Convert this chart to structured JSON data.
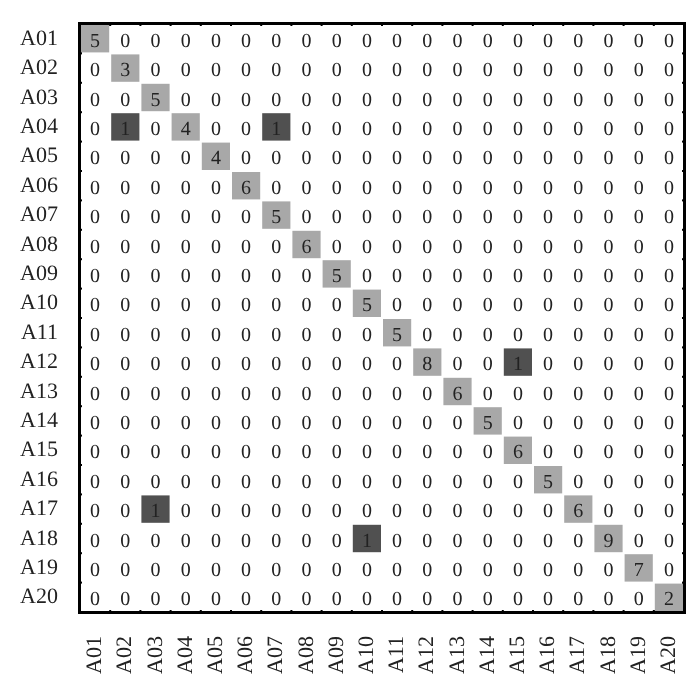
{
  "chart_data": {
    "type": "heatmap",
    "categories": [
      "A01",
      "A02",
      "A03",
      "A04",
      "A05",
      "A06",
      "A07",
      "A08",
      "A09",
      "A10",
      "A11",
      "A12",
      "A13",
      "A14",
      "A15",
      "A16",
      "A17",
      "A18",
      "A19",
      "A20"
    ],
    "y_categories": [
      "A01",
      "A02",
      "A03",
      "A04",
      "A05",
      "A06",
      "A07",
      "A08",
      "A09",
      "A10",
      "A11",
      "A12",
      "A13",
      "A14",
      "A15",
      "A16",
      "A17",
      "A18",
      "A19",
      "A20"
    ],
    "cells": [
      [
        5,
        0,
        0,
        0,
        0,
        0,
        0,
        0,
        0,
        0,
        0,
        0,
        0,
        0,
        0,
        0,
        0,
        0,
        0,
        0
      ],
      [
        0,
        3,
        0,
        0,
        0,
        0,
        0,
        0,
        0,
        0,
        0,
        0,
        0,
        0,
        0,
        0,
        0,
        0,
        0,
        0
      ],
      [
        0,
        0,
        5,
        0,
        0,
        0,
        0,
        0,
        0,
        0,
        0,
        0,
        0,
        0,
        0,
        0,
        0,
        0,
        0,
        0
      ],
      [
        0,
        1,
        0,
        4,
        0,
        0,
        1,
        0,
        0,
        0,
        0,
        0,
        0,
        0,
        0,
        0,
        0,
        0,
        0,
        0
      ],
      [
        0,
        0,
        0,
        0,
        4,
        0,
        0,
        0,
        0,
        0,
        0,
        0,
        0,
        0,
        0,
        0,
        0,
        0,
        0,
        0
      ],
      [
        0,
        0,
        0,
        0,
        0,
        6,
        0,
        0,
        0,
        0,
        0,
        0,
        0,
        0,
        0,
        0,
        0,
        0,
        0,
        0
      ],
      [
        0,
        0,
        0,
        0,
        0,
        0,
        5,
        0,
        0,
        0,
        0,
        0,
        0,
        0,
        0,
        0,
        0,
        0,
        0,
        0
      ],
      [
        0,
        0,
        0,
        0,
        0,
        0,
        0,
        6,
        0,
        0,
        0,
        0,
        0,
        0,
        0,
        0,
        0,
        0,
        0,
        0
      ],
      [
        0,
        0,
        0,
        0,
        0,
        0,
        0,
        0,
        5,
        0,
        0,
        0,
        0,
        0,
        0,
        0,
        0,
        0,
        0,
        0
      ],
      [
        0,
        0,
        0,
        0,
        0,
        0,
        0,
        0,
        0,
        5,
        0,
        0,
        0,
        0,
        0,
        0,
        0,
        0,
        0,
        0
      ],
      [
        0,
        0,
        0,
        0,
        0,
        0,
        0,
        0,
        0,
        0,
        5,
        0,
        0,
        0,
        0,
        0,
        0,
        0,
        0,
        0
      ],
      [
        0,
        0,
        0,
        0,
        0,
        0,
        0,
        0,
        0,
        0,
        0,
        8,
        0,
        0,
        1,
        0,
        0,
        0,
        0,
        0
      ],
      [
        0,
        0,
        0,
        0,
        0,
        0,
        0,
        0,
        0,
        0,
        0,
        0,
        6,
        0,
        0,
        0,
        0,
        0,
        0,
        0
      ],
      [
        0,
        0,
        0,
        0,
        0,
        0,
        0,
        0,
        0,
        0,
        0,
        0,
        0,
        5,
        0,
        0,
        0,
        0,
        0,
        0
      ],
      [
        0,
        0,
        0,
        0,
        0,
        0,
        0,
        0,
        0,
        0,
        0,
        0,
        0,
        0,
        6,
        0,
        0,
        0,
        0,
        0
      ],
      [
        0,
        0,
        0,
        0,
        0,
        0,
        0,
        0,
        0,
        0,
        0,
        0,
        0,
        0,
        0,
        5,
        0,
        0,
        0,
        0
      ],
      [
        0,
        0,
        1,
        0,
        0,
        0,
        0,
        0,
        0,
        0,
        0,
        0,
        0,
        0,
        0,
        0,
        6,
        0,
        0,
        0
      ],
      [
        0,
        0,
        0,
        0,
        0,
        0,
        0,
        0,
        0,
        1,
        0,
        0,
        0,
        0,
        0,
        0,
        0,
        9,
        0,
        0
      ],
      [
        0,
        0,
        0,
        0,
        0,
        0,
        0,
        0,
        0,
        0,
        0,
        0,
        0,
        0,
        0,
        0,
        0,
        0,
        7,
        0
      ],
      [
        0,
        0,
        0,
        0,
        0,
        0,
        0,
        0,
        0,
        0,
        0,
        0,
        0,
        0,
        0,
        0,
        0,
        0,
        0,
        2
      ]
    ],
    "colors": [
      "#ffffff",
      "#a8a8a8",
      "#505050"
    ],
    "data_labels": true
  }
}
